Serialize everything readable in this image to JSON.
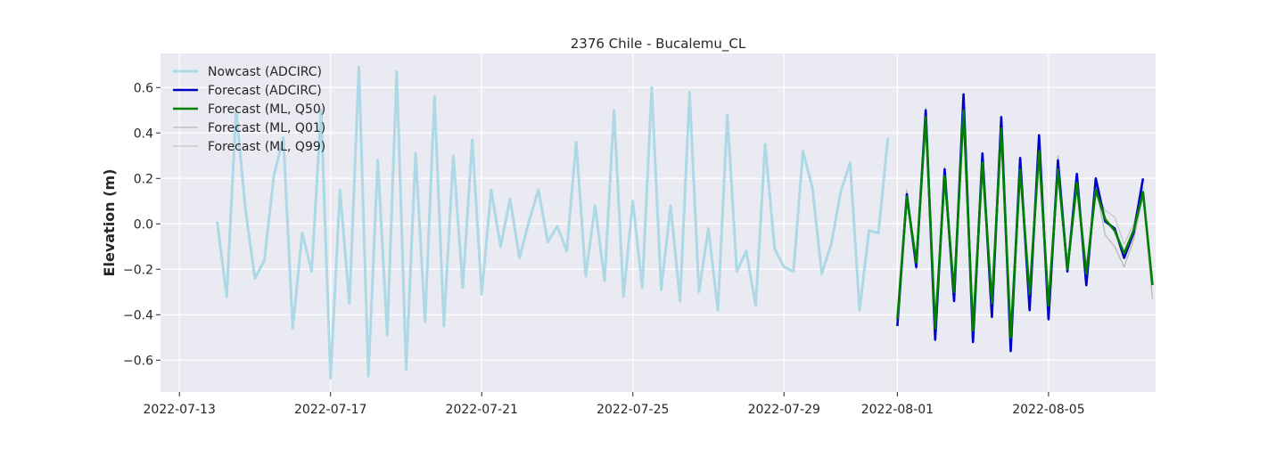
{
  "chart_data": {
    "type": "line",
    "title": "2376 Chile - Bucalemu_CL",
    "xlabel": "",
    "ylabel": "Elevation (m)",
    "xlim": [
      "2022-07-12T12:00",
      "2022-08-07T20:00"
    ],
    "ylim": [
      -0.74,
      0.75
    ],
    "grid": true,
    "legend_position": "top-left",
    "x_ticks": [
      "2022-07-13",
      "2022-07-17",
      "2022-07-21",
      "2022-07-25",
      "2022-07-29",
      "2022-08-01",
      "2022-08-05"
    ],
    "y_ticks": [
      -0.6,
      -0.4,
      -0.2,
      0.0,
      0.2,
      0.4,
      0.6
    ],
    "y_tick_labels": [
      "−0.6",
      "−0.4",
      "−0.2",
      "0.0",
      "0.2",
      "0.4",
      "0.6"
    ],
    "series": [
      {
        "name": "Nowcast (ADCIRC)",
        "color": "#add8e6",
        "x": [
          "2022-07-14T00:00",
          "2022-07-14T06:00",
          "2022-07-14T12:00",
          "2022-07-14T18:00",
          "2022-07-15T00:00",
          "2022-07-15T06:00",
          "2022-07-15T12:00",
          "2022-07-15T18:00",
          "2022-07-16T00:00",
          "2022-07-16T06:00",
          "2022-07-16T12:00",
          "2022-07-16T18:00",
          "2022-07-17T00:00",
          "2022-07-17T06:00",
          "2022-07-17T12:00",
          "2022-07-17T18:00",
          "2022-07-18T00:00",
          "2022-07-18T06:00",
          "2022-07-18T12:00",
          "2022-07-18T18:00",
          "2022-07-19T00:00",
          "2022-07-19T06:00",
          "2022-07-19T12:00",
          "2022-07-19T18:00",
          "2022-07-20T00:00",
          "2022-07-20T06:00",
          "2022-07-20T12:00",
          "2022-07-20T18:00",
          "2022-07-21T00:00",
          "2022-07-21T06:00",
          "2022-07-21T12:00",
          "2022-07-21T18:00",
          "2022-07-22T00:00",
          "2022-07-22T06:00",
          "2022-07-22T12:00",
          "2022-07-22T18:00",
          "2022-07-23T00:00",
          "2022-07-23T06:00",
          "2022-07-23T12:00",
          "2022-07-23T18:00",
          "2022-07-24T00:00",
          "2022-07-24T06:00",
          "2022-07-24T12:00",
          "2022-07-24T18:00",
          "2022-07-25T00:00",
          "2022-07-25T06:00",
          "2022-07-25T12:00",
          "2022-07-25T18:00",
          "2022-07-26T00:00",
          "2022-07-26T06:00",
          "2022-07-26T12:00",
          "2022-07-26T18:00",
          "2022-07-27T00:00",
          "2022-07-27T06:00",
          "2022-07-27T12:00",
          "2022-07-27T18:00",
          "2022-07-28T00:00",
          "2022-07-28T06:00",
          "2022-07-28T12:00",
          "2022-07-28T18:00",
          "2022-07-29T00:00",
          "2022-07-29T06:00",
          "2022-07-29T12:00",
          "2022-07-29T18:00",
          "2022-07-30T00:00",
          "2022-07-30T06:00",
          "2022-07-30T12:00",
          "2022-07-30T18:00",
          "2022-07-31T00:00",
          "2022-07-31T06:00",
          "2022-07-31T12:00",
          "2022-07-31T18:00"
        ],
        "y": [
          0.01,
          -0.32,
          0.5,
          0.06,
          -0.24,
          -0.16,
          0.21,
          0.38,
          -0.46,
          -0.04,
          -0.21,
          0.5,
          -0.68,
          0.15,
          -0.35,
          0.69,
          -0.67,
          0.28,
          -0.49,
          0.67,
          -0.64,
          0.31,
          -0.43,
          0.56,
          -0.45,
          0.3,
          -0.28,
          0.37,
          -0.31,
          0.15,
          -0.1,
          0.11,
          -0.15,
          0.01,
          0.15,
          -0.08,
          -0.01,
          -0.12,
          0.36,
          -0.23,
          0.08,
          -0.25,
          0.5,
          -0.32,
          0.1,
          -0.28,
          0.6,
          -0.29,
          0.08,
          -0.34,
          0.58,
          -0.3,
          -0.02,
          -0.38,
          0.48,
          -0.21,
          -0.12,
          -0.36,
          0.35,
          -0.11,
          -0.19,
          -0.21,
          0.32,
          0.16,
          -0.22,
          -0.09,
          0.14,
          0.27,
          -0.38,
          -0.03,
          -0.04,
          0.38
        ]
      },
      {
        "name": "Forecast (ADCIRC)",
        "color": "#0000cd",
        "x": [
          "2022-08-01T00:00",
          "2022-08-01T06:00",
          "2022-08-01T12:00",
          "2022-08-01T18:00",
          "2022-08-02T00:00",
          "2022-08-02T06:00",
          "2022-08-02T12:00",
          "2022-08-02T18:00",
          "2022-08-03T00:00",
          "2022-08-03T06:00",
          "2022-08-03T12:00",
          "2022-08-03T18:00",
          "2022-08-04T00:00",
          "2022-08-04T06:00",
          "2022-08-04T12:00",
          "2022-08-04T18:00",
          "2022-08-05T00:00",
          "2022-08-05T06:00",
          "2022-08-05T12:00",
          "2022-08-05T18:00",
          "2022-08-06T00:00",
          "2022-08-06T06:00",
          "2022-08-06T12:00",
          "2022-08-06T18:00",
          "2022-08-07T00:00",
          "2022-08-07T06:00",
          "2022-08-07T12:00"
        ],
        "y": [
          -0.45,
          0.13,
          -0.19,
          0.5,
          -0.51,
          0.24,
          -0.34,
          0.57,
          -0.52,
          0.31,
          -0.41,
          0.47,
          -0.56,
          0.29,
          -0.38,
          0.39,
          -0.42,
          0.28,
          -0.21,
          0.22,
          -0.27,
          0.2,
          0.01,
          -0.02,
          -0.15,
          -0.04,
          0.2
        ]
      },
      {
        "name": "Forecast (ML, Q50)",
        "color": "#008000",
        "x": [
          "2022-08-01T00:00",
          "2022-08-01T06:00",
          "2022-08-01T12:00",
          "2022-08-01T18:00",
          "2022-08-02T00:00",
          "2022-08-02T06:00",
          "2022-08-02T12:00",
          "2022-08-02T18:00",
          "2022-08-03T00:00",
          "2022-08-03T06:00",
          "2022-08-03T12:00",
          "2022-08-03T18:00",
          "2022-08-04T00:00",
          "2022-08-04T06:00",
          "2022-08-04T12:00",
          "2022-08-04T18:00",
          "2022-08-05T00:00",
          "2022-08-05T06:00",
          "2022-08-05T12:00",
          "2022-08-05T18:00",
          "2022-08-06T00:00",
          "2022-08-06T06:00",
          "2022-08-06T12:00",
          "2022-08-06T18:00",
          "2022-08-07T00:00",
          "2022-08-07T06:00",
          "2022-08-07T12:00",
          "2022-08-07T18:00"
        ],
        "y": [
          -0.42,
          0.12,
          -0.17,
          0.47,
          -0.46,
          0.21,
          -0.3,
          0.5,
          -0.47,
          0.27,
          -0.35,
          0.42,
          -0.5,
          0.24,
          -0.31,
          0.32,
          -0.36,
          0.24,
          -0.2,
          0.18,
          -0.22,
          0.15,
          0.02,
          -0.03,
          -0.13,
          -0.03,
          0.14,
          -0.27
        ]
      },
      {
        "name": "Forecast (ML, Q01)",
        "color": "#b8b8b8",
        "x": [
          "2022-08-01T00:00",
          "2022-08-01T06:00",
          "2022-08-01T12:00",
          "2022-08-01T18:00",
          "2022-08-02T00:00",
          "2022-08-02T06:00",
          "2022-08-02T12:00",
          "2022-08-02T18:00",
          "2022-08-03T00:00",
          "2022-08-03T06:00",
          "2022-08-03T12:00",
          "2022-08-03T18:00",
          "2022-08-04T00:00",
          "2022-08-04T06:00",
          "2022-08-04T12:00",
          "2022-08-04T18:00",
          "2022-08-05T00:00",
          "2022-08-05T06:00",
          "2022-08-05T12:00",
          "2022-08-05T18:00",
          "2022-08-06T00:00",
          "2022-08-06T06:00",
          "2022-08-06T12:00",
          "2022-08-06T18:00",
          "2022-08-07T00:00",
          "2022-08-07T06:00",
          "2022-08-07T12:00",
          "2022-08-07T18:00"
        ],
        "y": [
          -0.43,
          0.15,
          -0.2,
          0.51,
          -0.47,
          0.25,
          -0.31,
          0.49,
          -0.48,
          0.3,
          -0.37,
          0.44,
          -0.52,
          0.26,
          -0.35,
          0.34,
          -0.39,
          0.3,
          -0.21,
          0.2,
          -0.22,
          0.17,
          -0.05,
          -0.1,
          -0.19,
          -0.07,
          0.12,
          -0.33
        ]
      },
      {
        "name": "Forecast (ML, Q99)",
        "color": "#c8c8c8",
        "x": [
          "2022-08-01T00:00",
          "2022-08-01T06:00",
          "2022-08-01T12:00",
          "2022-08-01T18:00",
          "2022-08-02T00:00",
          "2022-08-02T06:00",
          "2022-08-02T12:00",
          "2022-08-02T18:00",
          "2022-08-03T00:00",
          "2022-08-03T06:00",
          "2022-08-03T12:00",
          "2022-08-03T18:00",
          "2022-08-04T00:00",
          "2022-08-04T06:00",
          "2022-08-04T12:00",
          "2022-08-04T18:00",
          "2022-08-05T00:00",
          "2022-08-05T06:00",
          "2022-08-05T12:00",
          "2022-08-05T18:00",
          "2022-08-06T00:00",
          "2022-08-06T06:00",
          "2022-08-06T12:00",
          "2022-08-06T18:00",
          "2022-08-07T00:00",
          "2022-08-07T06:00",
          "2022-08-07T12:00",
          "2022-08-07T18:00"
        ],
        "y": [
          -0.4,
          0.1,
          -0.15,
          0.45,
          -0.44,
          0.19,
          -0.28,
          0.48,
          -0.45,
          0.25,
          -0.33,
          0.4,
          -0.48,
          0.22,
          -0.29,
          0.3,
          -0.34,
          0.22,
          -0.17,
          0.17,
          -0.18,
          0.14,
          0.06,
          0.03,
          -0.09,
          0.0,
          0.16,
          -0.24
        ]
      }
    ]
  }
}
